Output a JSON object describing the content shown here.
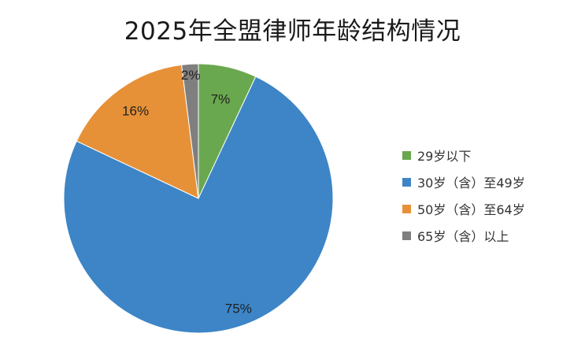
{
  "chart_data": {
    "type": "pie",
    "title": "2025年全盟律师年龄结构情况",
    "slices": [
      {
        "label": "29岁以下",
        "value": 7,
        "value_label": "7%",
        "color": "#6aa84f"
      },
      {
        "label": "30岁（含）至49岁",
        "value": 75,
        "value_label": "75%",
        "color": "#3d85c6"
      },
      {
        "label": "50岁（含）至64岁",
        "value": 16,
        "value_label": "16%",
        "color": "#e69138"
      },
      {
        "label": "65岁（含）以上",
        "value": 2,
        "value_label": "2%",
        "color": "#7f7f7f"
      }
    ],
    "start_angle_deg": 0,
    "direction": "clockwise",
    "legend_position": "right"
  }
}
